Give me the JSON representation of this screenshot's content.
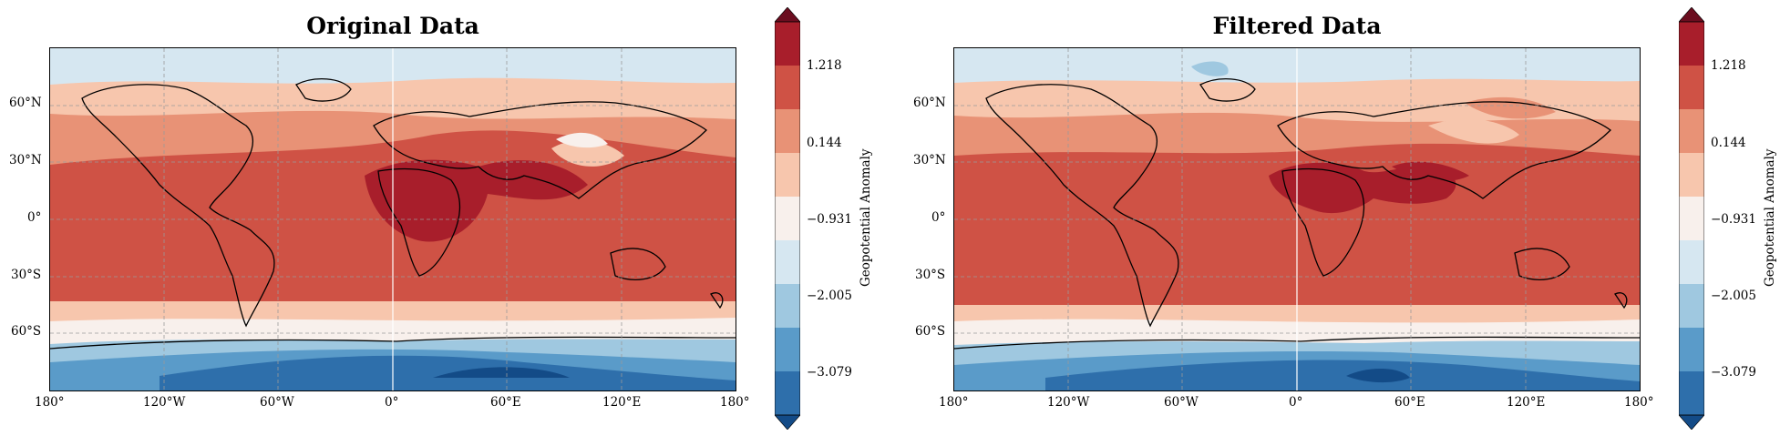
{
  "panels": [
    {
      "title": "Original Data",
      "lat_ticks": [
        "60°N",
        "30°N",
        "0°",
        "30°S",
        "60°S"
      ],
      "lon_ticks": [
        "180°",
        "120°W",
        "60°W",
        "0°",
        "60°E",
        "120°E",
        "180°"
      ],
      "colorbar": {
        "label": "Geopotential Anomaly",
        "ticks": [
          "1.218",
          "0.144",
          "−0.931",
          "−2.005",
          "−3.079"
        ]
      }
    },
    {
      "title": "Filtered Data",
      "lat_ticks": [
        "60°N",
        "30°N",
        "0°",
        "30°S",
        "60°S"
      ],
      "lon_ticks": [
        "180°",
        "120°W",
        "60°W",
        "0°",
        "60°E",
        "120°E",
        "180°"
      ],
      "colorbar": {
        "label": "Geopotential Anomaly",
        "ticks": [
          "1.218",
          "0.144",
          "−0.931",
          "−2.005",
          "−3.079"
        ]
      }
    }
  ],
  "colors": {
    "levels": [
      "#134b87",
      "#2e6fab",
      "#5a9bc9",
      "#9fc8e0",
      "#d6e7f1",
      "#f8f0ec",
      "#f7c6ad",
      "#e89276",
      "#cf5245",
      "#a81e2b",
      "#6b0d1f"
    ]
  }
}
